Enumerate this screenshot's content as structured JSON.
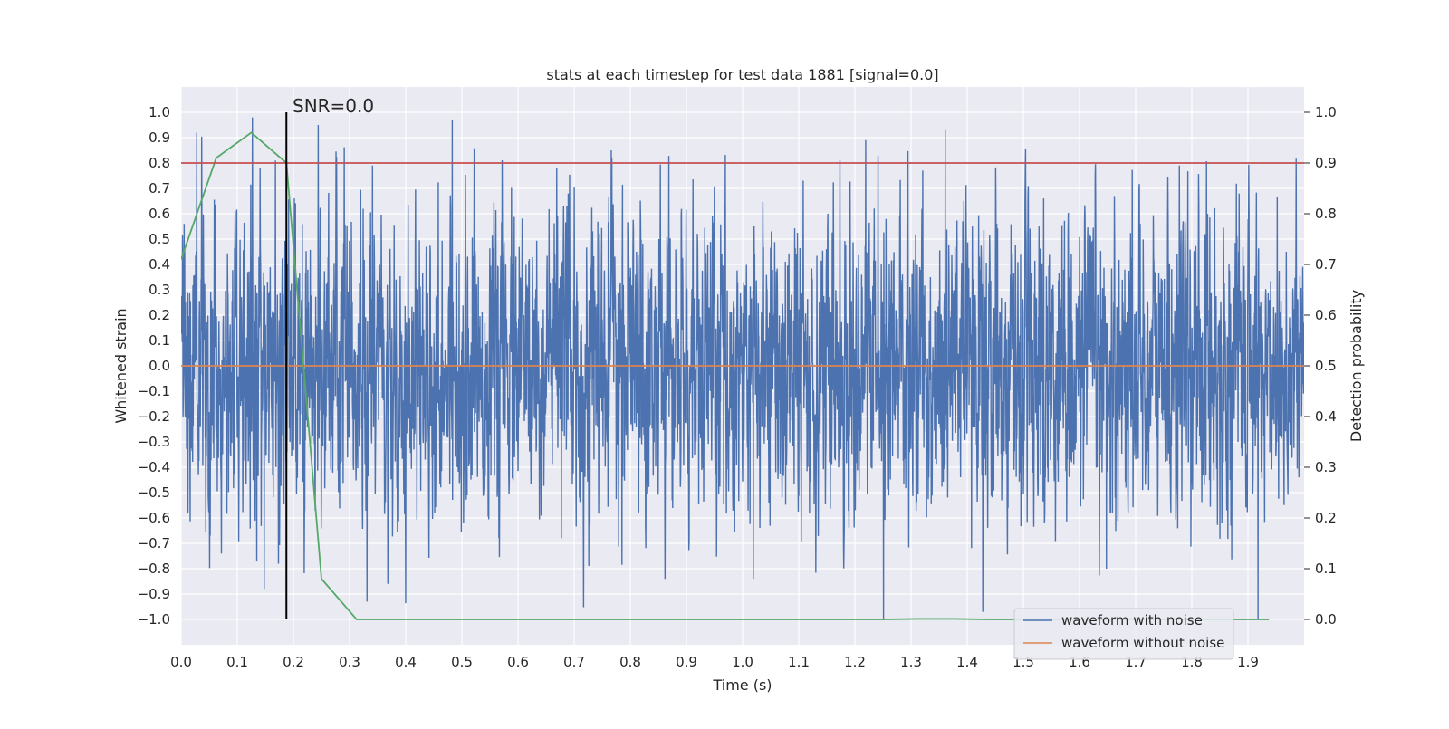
{
  "chart_data": {
    "type": "line",
    "title": "stats at each timestep for test data 1881 [signal=0.0]",
    "xlabel": "Time (s)",
    "ylabel": "Whitened strain",
    "y2label": "Detection probability",
    "xlim": [
      0.0,
      2.0
    ],
    "ylim": [
      -1.1,
      1.1
    ],
    "y2lim": [
      -0.05,
      1.05
    ],
    "xticks": [
      0.0,
      0.1,
      0.2,
      0.3,
      0.4,
      0.5,
      0.6,
      0.7,
      0.8,
      0.9,
      1.0,
      1.1,
      1.2,
      1.3,
      1.4,
      1.5,
      1.6,
      1.7,
      1.8,
      1.9
    ],
    "xtick_labels": [
      "0.0",
      "0.1",
      "0.2",
      "0.3",
      "0.4",
      "0.5",
      "0.6",
      "0.7",
      "0.8",
      "0.9",
      "1.0",
      "1.1",
      "1.2",
      "1.3",
      "1.4",
      "1.5",
      "1.6",
      "1.7",
      "1.8",
      "1.9"
    ],
    "yticks": [
      1.0,
      0.9,
      0.8,
      0.7,
      0.6,
      0.5,
      0.4,
      0.3,
      0.2,
      0.1,
      0.0,
      -0.1,
      -0.2,
      -0.3,
      -0.4,
      -0.5,
      -0.6,
      -0.7,
      -0.8,
      -0.9,
      -1.0
    ],
    "ytick_labels": [
      "1.0",
      "0.9",
      "0.8",
      "0.7",
      "0.6",
      "0.5",
      "0.4",
      "0.3",
      "0.2",
      "0.1",
      "0.0",
      "−0.1",
      "−0.2",
      "−0.3",
      "−0.4",
      "−0.5",
      "−0.6",
      "−0.7",
      "−0.8",
      "−0.9",
      "−1.0"
    ],
    "y2ticks": [
      1.0,
      0.9,
      0.8,
      0.7,
      0.6,
      0.5,
      0.4,
      0.3,
      0.2,
      0.1,
      0.0
    ],
    "y2tick_labels": [
      "1.0",
      "0.9",
      "0.8",
      "0.7",
      "0.6",
      "0.5",
      "0.4",
      "0.3",
      "0.2",
      "0.1",
      "0.0"
    ],
    "grid": true,
    "legend_position": "bottom-right",
    "series": [
      {
        "name": "waveform with noise",
        "axis": "left",
        "color": "#4c72b0",
        "sample_rate_hz": 2048,
        "amplitude_std": 0.3,
        "peaks": [
          {
            "x": 0.028,
            "y": 0.92
          },
          {
            "x": 0.127,
            "y": 0.98
          },
          {
            "x": 0.168,
            "y": 0.81
          },
          {
            "x": 0.341,
            "y": 0.79
          },
          {
            "x": 0.483,
            "y": 0.97
          },
          {
            "x": 0.669,
            "y": 0.78
          },
          {
            "x": 0.766,
            "y": 0.85
          },
          {
            "x": 1.219,
            "y": 0.89
          },
          {
            "x": 1.241,
            "y": 0.83
          },
          {
            "x": 1.361,
            "y": 0.93
          },
          {
            "x": 1.778,
            "y": 0.79
          },
          {
            "x": 1.321,
            "y": 0.77
          },
          {
            "x": 0.148,
            "y": -0.88
          },
          {
            "x": 0.331,
            "y": -0.93
          },
          {
            "x": 0.368,
            "y": -0.86
          },
          {
            "x": 1.019,
            "y": -0.84
          },
          {
            "x": 1.251,
            "y": -1.0
          },
          {
            "x": 1.648,
            "y": -0.8
          },
          {
            "x": 1.918,
            "y": -1.0
          },
          {
            "x": 0.012,
            "y": -0.58
          },
          {
            "x": 0.072,
            "y": -0.74
          }
        ]
      },
      {
        "name": "waveform without noise",
        "axis": "left",
        "color": "#dd8452",
        "x": [
          0.0,
          2.0
        ],
        "y": [
          0.0,
          0.0
        ]
      },
      {
        "name": "",
        "axis": "right",
        "color": "#55a868",
        "x": [
          0.0,
          0.0625,
          0.125,
          0.1875,
          0.25,
          0.3125,
          0.375,
          0.4375,
          0.5,
          0.5625,
          0.625,
          0.6875,
          0.75,
          0.8125,
          0.875,
          0.9375,
          1.0,
          1.0625,
          1.125,
          1.1875,
          1.25,
          1.3125,
          1.375,
          1.4375,
          1.5,
          1.5625,
          1.625,
          1.6875,
          1.75,
          1.8125,
          1.875,
          1.9375
        ],
        "y": [
          0.71,
          0.91,
          0.96,
          0.9,
          0.08,
          0.0,
          0.0,
          0.0,
          0.0,
          0.0,
          0.0,
          0.0,
          0.0,
          0.0,
          0.0,
          0.0,
          0.0,
          0.0,
          0.0,
          0.0,
          0.0,
          0.001,
          0.001,
          0.0,
          0.0,
          0.0,
          0.0,
          0.0,
          0.0,
          0.0,
          0.0,
          0.0
        ]
      }
    ],
    "threshold": {
      "axis": "right",
      "y": 0.9,
      "color": "#c44e52"
    },
    "marker": {
      "x": 0.1875,
      "label": "SNR=0.0",
      "color": "#000000"
    }
  }
}
